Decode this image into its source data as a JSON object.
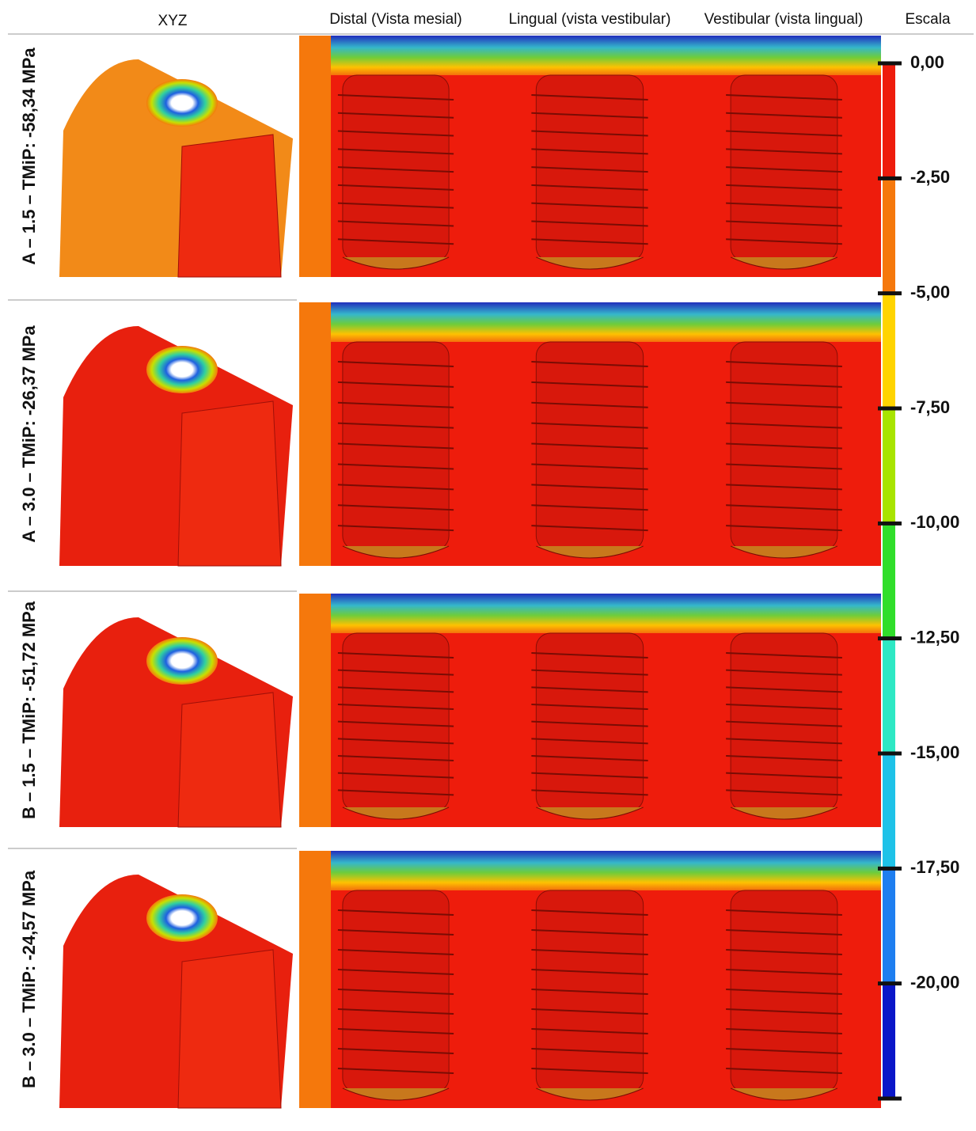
{
  "header": {
    "columns": [
      "XYZ",
      "Distal (Vista mesial)",
      "Lingual (vista vestibular)",
      "Vestibular (vista lingual)",
      "Escala"
    ]
  },
  "rows": [
    {
      "label": "A – 1.5 – TMiP: -58,34 MPa"
    },
    {
      "label": "A – 3.0 – TMiP: -26,37 MPa"
    },
    {
      "label": "B – 1.5 – TMiP: -51,72 MPa"
    },
    {
      "label": "B – 3.0 – TMiP: -24,57 MPa"
    }
  ],
  "scale": {
    "lim": [
      0,
      -22.5
    ],
    "ticks": [
      {
        "value": 0,
        "label": "0,00"
      },
      {
        "value": -2.5,
        "label": "-2,50"
      },
      {
        "value": -5,
        "label": "-5,00"
      },
      {
        "value": -7.5,
        "label": "-7,50"
      },
      {
        "value": -10,
        "label": "-10,00"
      },
      {
        "value": -12.5,
        "label": "-12,50"
      },
      {
        "value": -15,
        "label": "-15,00"
      },
      {
        "value": -17.5,
        "label": "-17,50"
      },
      {
        "value": -20,
        "label": "-20,00"
      }
    ],
    "colors": [
      "#ee1c0c",
      "#f5780c",
      "#ffd400",
      "#a8e400",
      "#30de2a",
      "#2ee8c4",
      "#1ec2e8",
      "#1e7ef0",
      "#0a16c8"
    ]
  }
}
